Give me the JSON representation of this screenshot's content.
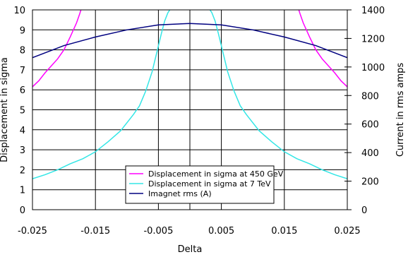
{
  "chart_data": {
    "type": "line",
    "xlabel": "Delta",
    "ylabel_left": "Displacement in sigma",
    "ylabel_right": "Current in rms amps",
    "xlim": [
      -0.025,
      0.025
    ],
    "ylim_left": [
      0,
      10
    ],
    "ylim_right": [
      0,
      1400
    ],
    "xticks": [
      "-0.025",
      "-0.015",
      "-0.005",
      "0.005",
      "0.015",
      "0.025"
    ],
    "yticks_left": [
      "0",
      "1",
      "2",
      "3",
      "4",
      "5",
      "6",
      "7",
      "8",
      "9",
      "10"
    ],
    "yticks_right": [
      "0",
      "200",
      "400",
      "600",
      "800",
      "1000",
      "1200",
      "1400"
    ],
    "grid": true,
    "legend_position": "lower-center",
    "series": [
      {
        "name": "Displacement in sigma at 450 GeV",
        "axis": "left",
        "color": "#ff00ff",
        "x": [
          -0.025,
          -0.024,
          -0.023,
          -0.022,
          -0.021,
          -0.02,
          -0.019,
          -0.018,
          -0.0175,
          -0.0173,
          0.0173,
          0.0175,
          0.018,
          0.019,
          0.02,
          0.021,
          0.022,
          0.023,
          0.024,
          0.025
        ],
        "y": [
          6.15,
          6.45,
          6.85,
          7.2,
          7.55,
          8.0,
          8.65,
          9.35,
          9.8,
          10.0,
          10.0,
          9.8,
          9.35,
          8.65,
          8.0,
          7.55,
          7.2,
          6.85,
          6.45,
          6.15
        ]
      },
      {
        "name": "Displacement in sigma at 7 TeV",
        "axis": "left",
        "color": "#33e6e6",
        "x": [
          -0.025,
          -0.023,
          -0.021,
          -0.019,
          -0.017,
          -0.015,
          -0.013,
          -0.011,
          -0.009,
          -0.008,
          -0.007,
          -0.006,
          -0.005,
          -0.0045,
          -0.004,
          -0.0035,
          -0.0032,
          0.0032,
          0.0035,
          0.004,
          0.0045,
          0.005,
          0.006,
          0.007,
          0.008,
          0.009,
          0.011,
          0.013,
          0.015,
          0.017,
          0.019,
          0.021,
          0.023,
          0.025
        ],
        "y": [
          1.55,
          1.75,
          2.0,
          2.3,
          2.55,
          2.9,
          3.4,
          3.95,
          4.75,
          5.2,
          5.95,
          6.9,
          8.2,
          8.85,
          9.45,
          9.85,
          10.0,
          10.0,
          9.85,
          9.45,
          8.85,
          8.2,
          6.9,
          5.95,
          5.2,
          4.75,
          3.95,
          3.4,
          2.9,
          2.55,
          2.3,
          2.0,
          1.75,
          1.55
        ]
      },
      {
        "name": "Imagnet rms (A)",
        "axis": "right",
        "color": "#000080",
        "x": [
          -0.025,
          -0.02,
          -0.015,
          -0.01,
          -0.005,
          0.0,
          0.005,
          0.01,
          0.015,
          0.02,
          0.025
        ],
        "y": [
          1065,
          1150,
          1210,
          1260,
          1295,
          1305,
          1295,
          1260,
          1210,
          1150,
          1065
        ]
      }
    ]
  }
}
